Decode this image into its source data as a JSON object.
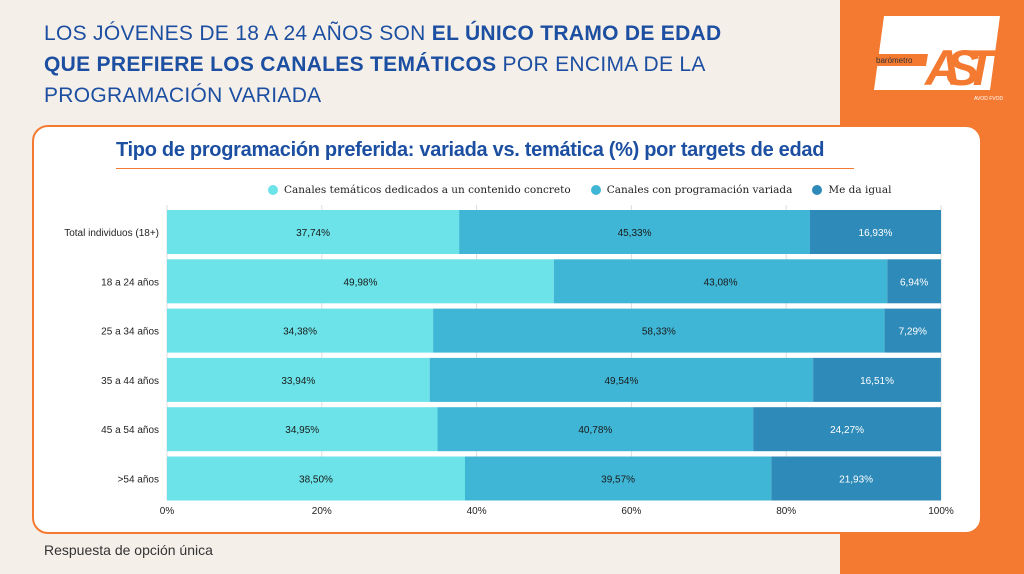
{
  "headline": {
    "normal1": "LOS JÓVENES DE 18 A 24 AÑOS SON ",
    "bold1": "EL ÚNICO TRAMO DE EDAD QUE PREFIERE LOS CANALES TEMÁTICOS",
    "normal2": " POR ENCIMA DE LA PROGRAMACIÓN VARIADA"
  },
  "logo": {
    "small": "barómetro",
    "big": "FAST",
    "sub": "AVOD FVOD"
  },
  "footer": "Respuesta de opción única",
  "colors": {
    "accent": "#f47a32",
    "title": "#1c4fa1"
  },
  "chart_data": {
    "type": "bar",
    "orientation": "horizontal",
    "stacked": true,
    "title": "Tipo de programación preferida: variada vs. temática (%) por targets de edad",
    "categories": [
      "Total individuos (18+)",
      "18 a 24 años",
      "25 a 34 años",
      "35 a 44 años",
      "45 a 54 años",
      ">54 años"
    ],
    "series": [
      {
        "name": "Canales temáticos dedicados a un contenido concreto",
        "color": "#6be3e8",
        "values": [
          37.74,
          49.98,
          34.38,
          33.94,
          34.95,
          38.5
        ],
        "labels": [
          "37,74%",
          "49,98%",
          "34,38%",
          "33,94%",
          "34,95%",
          "38,50%"
        ]
      },
      {
        "name": "Canales con programación variada",
        "color": "#40b6d6",
        "values": [
          45.33,
          43.08,
          58.33,
          49.54,
          40.78,
          39.57
        ],
        "labels": [
          "45,33%",
          "43,08%",
          "58,33%",
          "49,54%",
          "40,78%",
          "39,57%"
        ]
      },
      {
        "name": "Me da igual",
        "color": "#2e8ab8",
        "values": [
          16.93,
          6.94,
          7.29,
          16.51,
          24.27,
          21.93
        ],
        "labels": [
          "16,93%",
          "6,94%",
          "7,29%",
          "16,51%",
          "24,27%",
          "21,93%"
        ]
      }
    ],
    "xticks": [
      "0%",
      "20%",
      "40%",
      "60%",
      "80%",
      "100%"
    ],
    "xlim": [
      0,
      100
    ],
    "legend": "top",
    "grid": true
  }
}
